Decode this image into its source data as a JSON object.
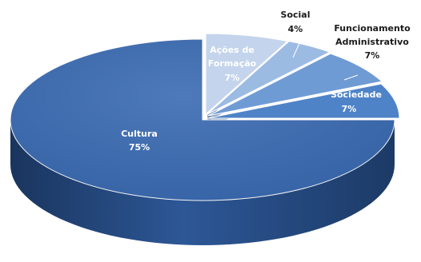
{
  "chart_data": {
    "type": "pie",
    "style": "3d-exploded",
    "title": "",
    "slices": [
      {
        "id": "cultura",
        "label": "Cultura",
        "value": 75,
        "display": "75%",
        "color": "#3a6bb3",
        "label_color": "light"
      },
      {
        "id": "sociedade",
        "label": "Sociedade",
        "value": 7,
        "display": "7%",
        "color": "#4f83c8",
        "label_color": "light"
      },
      {
        "id": "funcionamento",
        "label": "Funcionamento Administrativo",
        "value": 7,
        "display": "7%",
        "color": "#6f9bd5",
        "label_color": "dark"
      },
      {
        "id": "social",
        "label": "Social",
        "value": 4,
        "display": "4%",
        "color": "#9cbbe3",
        "label_color": "dark"
      },
      {
        "id": "acoes",
        "label": "Ações de Formação",
        "value": 7,
        "display": "7%",
        "color": "#c4d4ec",
        "label_color": "light"
      }
    ]
  },
  "labels": {
    "cultura": {
      "name": "Cultura",
      "pct": "75%"
    },
    "sociedade": {
      "name": "Sociedade",
      "pct": "7%"
    },
    "funcionamento": {
      "name1": "Funcionamento",
      "name2": "Administrativo",
      "pct": "7%"
    },
    "social": {
      "name": "Social",
      "pct": "4%"
    },
    "acoes": {
      "name1": "Ações de",
      "name2": "Formação",
      "pct": "7%"
    }
  },
  "colors": {
    "side_dark": "#1c3a66",
    "side_mid": "#2c5595",
    "edge": "#ffffff"
  }
}
